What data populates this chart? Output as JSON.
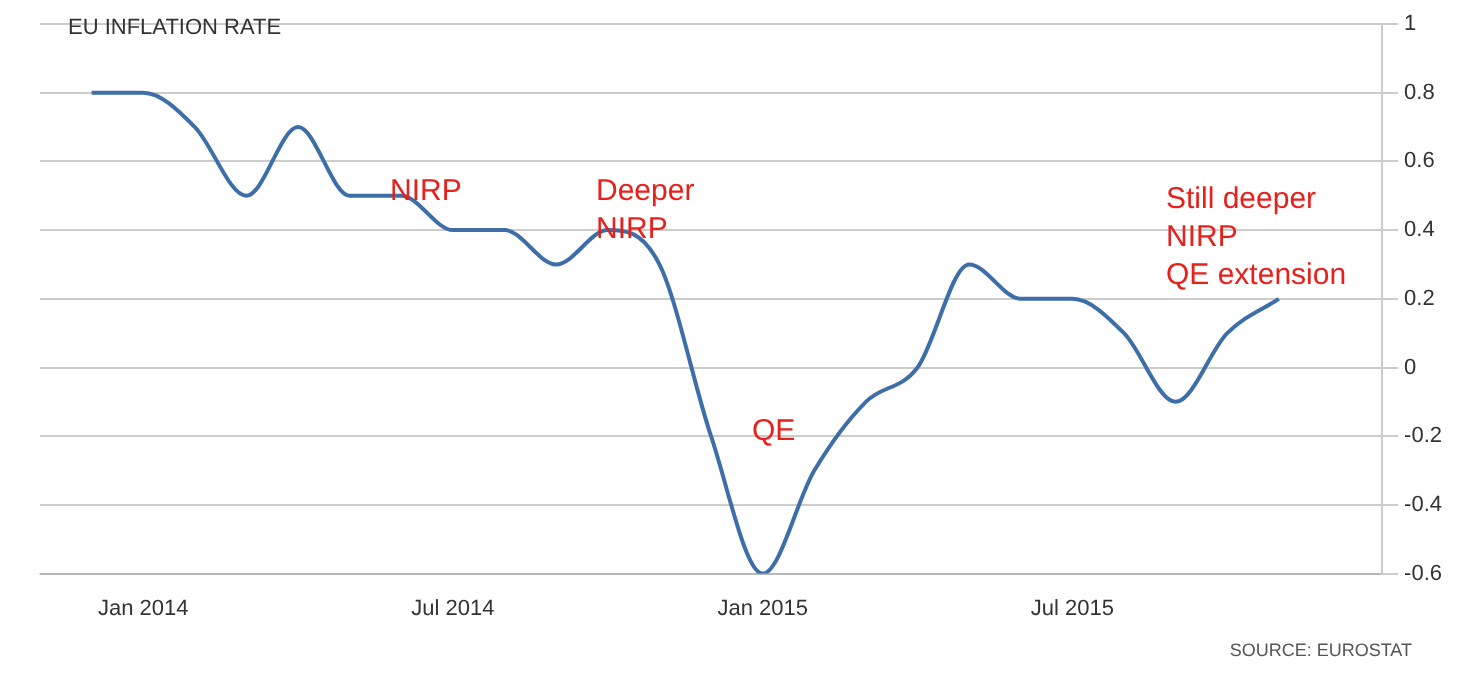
{
  "chart_data": {
    "type": "line",
    "title": "EU INFLATION RATE",
    "x": [
      "2013-12",
      "2014-01",
      "2014-02",
      "2014-03",
      "2014-04",
      "2014-05",
      "2014-06",
      "2014-07",
      "2014-08",
      "2014-09",
      "2014-10",
      "2014-11",
      "2014-12",
      "2015-01",
      "2015-02",
      "2015-03",
      "2015-04",
      "2015-05",
      "2015-06",
      "2015-07",
      "2015-08",
      "2015-09",
      "2015-10",
      "2015-11"
    ],
    "series": [
      {
        "color": "#3d6ea8",
        "values": [
          0.8,
          0.8,
          0.7,
          0.5,
          0.7,
          0.5,
          0.5,
          0.4,
          0.4,
          0.3,
          0.4,
          0.3,
          -0.2,
          -0.6,
          -0.3,
          -0.1,
          0,
          0.3,
          0.2,
          0.2,
          0.1,
          -0.1,
          0.1,
          0.2
        ]
      }
    ],
    "xlim": [
      "2013-11",
      "2016-01"
    ],
    "xticks": [
      {
        "value": "2014-01",
        "label": "Jan 2014"
      },
      {
        "value": "2014-07",
        "label": "Jul 2014"
      },
      {
        "value": "2015-01",
        "label": "Jan 2015"
      },
      {
        "value": "2015-07",
        "label": "Jul 2015"
      }
    ],
    "ylim": [
      -0.6,
      1
    ],
    "yticks": [
      -0.6,
      -0.4,
      -0.2,
      0,
      0.2,
      0.4,
      0.6,
      0.8,
      1
    ],
    "grid": "y",
    "legend": false,
    "marker": "none",
    "line_style": "solid",
    "annotations": [
      "NIRP",
      "Deeper\nNIRP",
      "QE",
      "Still deeper\nNIRP\nQE extension",
      "SOURCE: EUROSTAT"
    ]
  }
}
